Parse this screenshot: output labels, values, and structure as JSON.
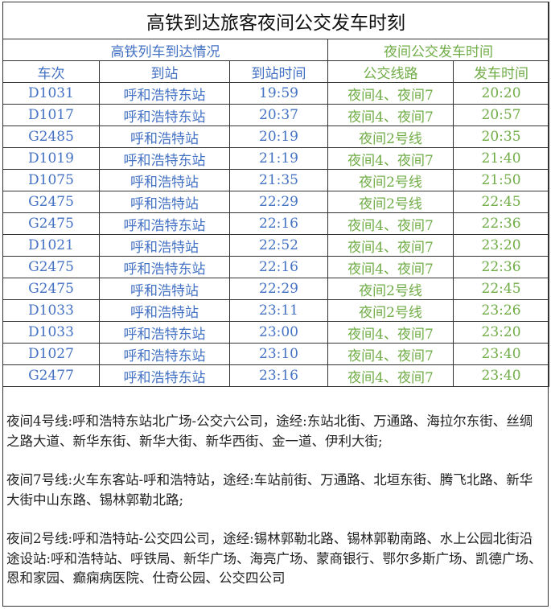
{
  "title": "高铁到达旅客夜间公交发车时刻",
  "group_headers": {
    "train": "高铁列车到达情况",
    "bus": "夜间公交发车时间"
  },
  "columns": [
    "车次",
    "到站",
    "到站时间",
    "公交线路",
    "发车时间"
  ],
  "colors": {
    "train": "#4472c4",
    "bus": "#70ad47"
  },
  "rows": [
    [
      "D1031",
      "呼和浩特东站",
      "19:59",
      "夜间4、夜间7",
      "20:20"
    ],
    [
      "D1017",
      "呼和浩特东站",
      "20:37",
      "夜间4、夜间7",
      "20:57"
    ],
    [
      "G2485",
      "呼和浩特站",
      "20:19",
      "夜间2号线",
      "20:35"
    ],
    [
      "D1019",
      "呼和浩特东站",
      "21:19",
      "夜间4、夜间7",
      "21:40"
    ],
    [
      "D1075",
      "呼和浩特站",
      "21:35",
      "夜间2号线",
      "21:50"
    ],
    [
      "G2475",
      "呼和浩特站",
      "22:29",
      "夜间2号线",
      "22:45"
    ],
    [
      "G2475",
      "呼和浩特东站",
      "22:16",
      "夜间4、夜间7",
      "22:36"
    ],
    [
      "D1021",
      "呼和浩特站",
      "22:52",
      "夜间4、夜间7",
      "23:20"
    ],
    [
      "G2475",
      "呼和浩特东站",
      "22:16",
      "夜间4、夜间7",
      "22:36"
    ],
    [
      "G2475",
      "呼和浩特站",
      "22:29",
      "夜间2号线",
      "22:45"
    ],
    [
      "D1033",
      "呼和浩特站",
      "23:11",
      "夜间2号线",
      "23:26"
    ],
    [
      "D1033",
      "呼和浩特东站",
      "23:00",
      "夜间4、夜间7",
      "23:20"
    ],
    [
      "D1027",
      "呼和浩特东站",
      "23:10",
      "夜间4、夜间7",
      "23:40"
    ],
    [
      "G2477",
      "呼和浩特东站",
      "23:16",
      "夜间4、夜间7",
      "23:40"
    ]
  ],
  "notes": [
    "夜间4号线:呼和浩特东站北广场-公交六公司，途经:东站北街、万通路、海拉尔东街、丝绸之路大道、新华东街、新华大街、新华西街、金一道、伊利大街;",
    "夜间7号线:火车东客站-呼和浩特站，途经:车站前街、万通路、北垣东街、腾飞北路、新华大街中山东路、锡林郭勒北路;",
    "夜间2号线:呼和浩特站-公交四公司，途经:锡林郭勒北路、锡林郭勒南路、水上公园北街沿途设站:呼和浩特站、呼铁局、新华广场、海亮广场、蒙商银行、鄂尔多斯广场、凯德广场、恩和家园、癫痫病医院、仕奇公园、公交四公司"
  ]
}
